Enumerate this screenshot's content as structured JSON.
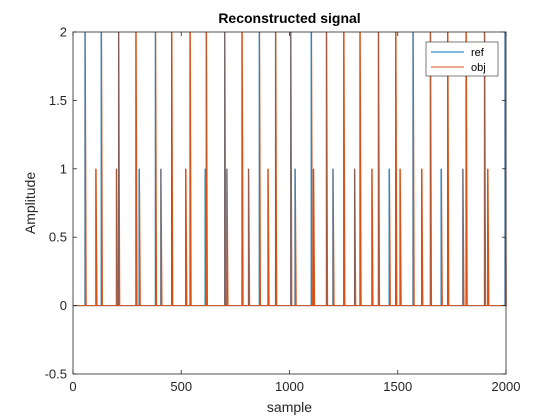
{
  "chart_data": {
    "type": "line",
    "title": "Reconstructed signal",
    "xlabel": "sample",
    "ylabel": "Amplitude",
    "xlim": [
      0,
      2000
    ],
    "ylim": [
      -0.5,
      2
    ],
    "xticks": [
      0,
      500,
      1000,
      1500,
      2000
    ],
    "xtick_labels": [
      "0",
      "500",
      "1000",
      "1500",
      "2000"
    ],
    "yticks": [
      -0.5,
      0,
      0.5,
      1,
      1.5,
      2
    ],
    "ytick_labels": [
      "-0.5",
      "0",
      "0.5",
      "1",
      "1.5",
      "2"
    ],
    "grid": false,
    "legend_position": "top-right",
    "series": [
      {
        "name": "ref",
        "color": "#0072BD",
        "spikes": [
          {
            "x": 55,
            "y": 2
          },
          {
            "x": 105,
            "y": 1
          },
          {
            "x": 130,
            "y": 2
          },
          {
            "x": 200,
            "y": 1
          },
          {
            "x": 210,
            "y": 2
          },
          {
            "x": 290,
            "y": 2
          },
          {
            "x": 305,
            "y": 1
          },
          {
            "x": 380,
            "y": 2
          },
          {
            "x": 405,
            "y": 1
          },
          {
            "x": 455,
            "y": 2
          },
          {
            "x": 520,
            "y": 1
          },
          {
            "x": 540,
            "y": 2
          },
          {
            "x": 610,
            "y": 1
          },
          {
            "x": 615,
            "y": 2
          },
          {
            "x": 700,
            "y": 2
          },
          {
            "x": 710,
            "y": 1
          },
          {
            "x": 780,
            "y": 2
          },
          {
            "x": 810,
            "y": 1
          },
          {
            "x": 860,
            "y": 2
          },
          {
            "x": 900,
            "y": 1
          },
          {
            "x": 935,
            "y": 2
          },
          {
            "x": 1005,
            "y": 2
          },
          {
            "x": 1025,
            "y": 1
          },
          {
            "x": 1100,
            "y": 2
          },
          {
            "x": 1110,
            "y": 1
          },
          {
            "x": 1170,
            "y": 2
          },
          {
            "x": 1200,
            "y": 1
          },
          {
            "x": 1250,
            "y": 2
          },
          {
            "x": 1300,
            "y": 1
          },
          {
            "x": 1325,
            "y": 2
          },
          {
            "x": 1380,
            "y": 1
          },
          {
            "x": 1410,
            "y": 2
          },
          {
            "x": 1460,
            "y": 1
          },
          {
            "x": 1490,
            "y": 2
          },
          {
            "x": 1510,
            "y": 1
          },
          {
            "x": 1570,
            "y": 2
          },
          {
            "x": 1610,
            "y": 1
          },
          {
            "x": 1650,
            "y": 2
          },
          {
            "x": 1700,
            "y": 1
          },
          {
            "x": 1730,
            "y": 2
          },
          {
            "x": 1800,
            "y": 1
          },
          {
            "x": 1815,
            "y": 2
          },
          {
            "x": 1900,
            "y": 2
          },
          {
            "x": 1915,
            "y": 1
          },
          {
            "x": 1995,
            "y": 2
          }
        ]
      },
      {
        "name": "obj",
        "color": "#D95319",
        "spikes": [
          {
            "x": 57,
            "y": 2
          },
          {
            "x": 107,
            "y": 1
          },
          {
            "x": 132,
            "y": 2
          },
          {
            "x": 202,
            "y": 1
          },
          {
            "x": 212,
            "y": 2
          },
          {
            "x": 292,
            "y": 2
          },
          {
            "x": 307,
            "y": 1
          },
          {
            "x": 382,
            "y": 2
          },
          {
            "x": 407,
            "y": 1
          },
          {
            "x": 457,
            "y": 2
          },
          {
            "x": 522,
            "y": 1
          },
          {
            "x": 542,
            "y": 2
          },
          {
            "x": 612,
            "y": 1
          },
          {
            "x": 617,
            "y": 2
          },
          {
            "x": 702,
            "y": 2
          },
          {
            "x": 712,
            "y": 1
          },
          {
            "x": 782,
            "y": 2
          },
          {
            "x": 812,
            "y": 1
          },
          {
            "x": 862,
            "y": 2
          },
          {
            "x": 902,
            "y": 1
          },
          {
            "x": 937,
            "y": 2
          },
          {
            "x": 1007,
            "y": 2
          },
          {
            "x": 1027,
            "y": 1
          },
          {
            "x": 1102,
            "y": 2
          },
          {
            "x": 1112,
            "y": 1
          },
          {
            "x": 1172,
            "y": 2
          },
          {
            "x": 1202,
            "y": 1
          },
          {
            "x": 1252,
            "y": 2
          },
          {
            "x": 1302,
            "y": 1
          },
          {
            "x": 1327,
            "y": 2
          },
          {
            "x": 1382,
            "y": 1
          },
          {
            "x": 1412,
            "y": 2
          },
          {
            "x": 1462,
            "y": 1
          },
          {
            "x": 1492,
            "y": 2
          },
          {
            "x": 1512,
            "y": 1
          },
          {
            "x": 1572,
            "y": 2
          },
          {
            "x": 1612,
            "y": 1
          },
          {
            "x": 1652,
            "y": 2
          },
          {
            "x": 1702,
            "y": 1
          },
          {
            "x": 1732,
            "y": 2
          },
          {
            "x": 1802,
            "y": 1
          },
          {
            "x": 1817,
            "y": 2
          },
          {
            "x": 1902,
            "y": 2
          },
          {
            "x": 1917,
            "y": 1
          },
          {
            "x": 1997,
            "y": 2
          }
        ]
      }
    ]
  }
}
